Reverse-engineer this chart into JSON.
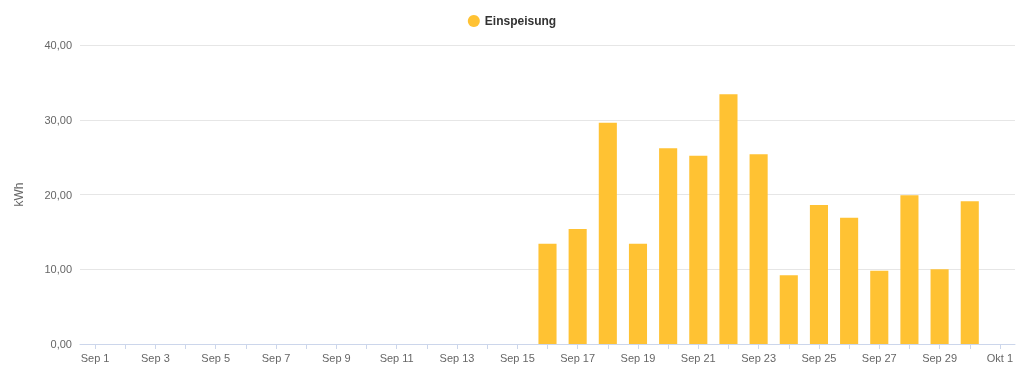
{
  "chart_data": {
    "type": "bar",
    "ylabel": "kWh",
    "categories": [
      "Sep 1",
      null,
      "Sep 3",
      null,
      "Sep 5",
      null,
      "Sep 7",
      null,
      "Sep 9",
      null,
      "Sep 11",
      null,
      "Sep 13",
      null,
      "Sep 15",
      null,
      "Sep 17",
      null,
      "Sep 19",
      null,
      "Sep 21",
      null,
      "Sep 23",
      null,
      "Sep 25",
      null,
      "Sep 27",
      null,
      "Sep 29",
      null,
      "Okt 1"
    ],
    "series": [
      {
        "name": "Einspeisung",
        "color": "#ffc233",
        "values": [
          null,
          null,
          null,
          null,
          null,
          null,
          null,
          null,
          null,
          null,
          null,
          null,
          null,
          null,
          null,
          13.4,
          15.4,
          29.6,
          13.4,
          26.2,
          25.2,
          33.4,
          25.4,
          9.2,
          18.6,
          16.9,
          9.8,
          19.9,
          10.0,
          19.1,
          null
        ]
      }
    ],
    "ylim": [
      0,
      40
    ],
    "yticks": [
      {
        "value": 0,
        "label": "0,00"
      },
      {
        "value": 10,
        "label": "10,00"
      },
      {
        "value": 20,
        "label": "20,00"
      },
      {
        "value": 30,
        "label": "30,00"
      },
      {
        "value": 40,
        "label": "40,00"
      }
    ],
    "grid": "y",
    "legend": "top"
  }
}
